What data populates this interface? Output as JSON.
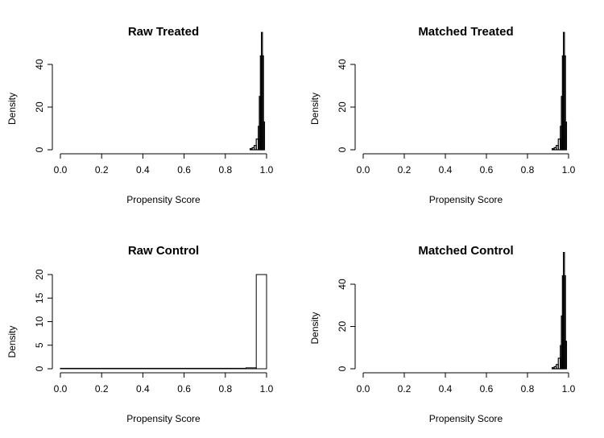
{
  "chart_data": [
    {
      "type": "histogram",
      "title": "Raw Treated",
      "xlabel": "Propensity Score",
      "ylabel": "Density",
      "xlim": [
        0,
        1
      ],
      "ylim": [
        0,
        50
      ],
      "xticks": [
        "0.0",
        "0.2",
        "0.4",
        "0.6",
        "0.8",
        "1.0"
      ],
      "yticks": [
        "0",
        "20",
        "40"
      ],
      "bins": [
        {
          "x0": 0.92,
          "x1": 0.93,
          "density": 0.5
        },
        {
          "x0": 0.93,
          "x1": 0.94,
          "density": 1
        },
        {
          "x0": 0.94,
          "x1": 0.95,
          "density": 2
        },
        {
          "x0": 0.95,
          "x1": 0.96,
          "density": 5
        },
        {
          "x0": 0.96,
          "x1": 0.965,
          "density": 11
        },
        {
          "x0": 0.965,
          "x1": 0.97,
          "density": 25
        },
        {
          "x0": 0.97,
          "x1": 0.975,
          "density": 44
        },
        {
          "x0": 0.975,
          "x1": 0.98,
          "density": 55
        },
        {
          "x0": 0.98,
          "x1": 0.985,
          "density": 44
        },
        {
          "x0": 0.985,
          "x1": 0.99,
          "density": 13
        }
      ]
    },
    {
      "type": "histogram",
      "title": "Matched Treated",
      "xlabel": "Propensity Score",
      "ylabel": "Density",
      "xlim": [
        0,
        1
      ],
      "ylim": [
        0,
        50
      ],
      "xticks": [
        "0.0",
        "0.2",
        "0.4",
        "0.6",
        "0.8",
        "1.0"
      ],
      "yticks": [
        "0",
        "20",
        "40"
      ],
      "bins": [
        {
          "x0": 0.92,
          "x1": 0.93,
          "density": 0.5
        },
        {
          "x0": 0.93,
          "x1": 0.94,
          "density": 1
        },
        {
          "x0": 0.94,
          "x1": 0.95,
          "density": 2
        },
        {
          "x0": 0.95,
          "x1": 0.96,
          "density": 5
        },
        {
          "x0": 0.96,
          "x1": 0.965,
          "density": 11
        },
        {
          "x0": 0.965,
          "x1": 0.97,
          "density": 25
        },
        {
          "x0": 0.97,
          "x1": 0.975,
          "density": 44
        },
        {
          "x0": 0.975,
          "x1": 0.98,
          "density": 55
        },
        {
          "x0": 0.98,
          "x1": 0.985,
          "density": 44
        },
        {
          "x0": 0.985,
          "x1": 0.99,
          "density": 13
        }
      ]
    },
    {
      "type": "histogram",
      "title": "Raw Control",
      "xlabel": "Propensity Score",
      "ylabel": "Density",
      "xlim": [
        0,
        1
      ],
      "ylim": [
        0,
        20
      ],
      "xticks": [
        "0.0",
        "0.2",
        "0.4",
        "0.6",
        "0.8",
        "1.0"
      ],
      "yticks": [
        "0",
        "5",
        "10",
        "15",
        "20"
      ],
      "bins": [
        {
          "x0": 0.0,
          "x1": 0.9,
          "density": 0.1
        },
        {
          "x0": 0.9,
          "x1": 0.95,
          "density": 0.2
        },
        {
          "x0": 0.95,
          "x1": 1.0,
          "density": 20
        }
      ]
    },
    {
      "type": "histogram",
      "title": "Matched Control",
      "xlabel": "Propensity Score",
      "ylabel": "Density",
      "xlim": [
        0,
        1
      ],
      "ylim": [
        0,
        50
      ],
      "xticks": [
        "0.0",
        "0.2",
        "0.4",
        "0.6",
        "0.8",
        "1.0"
      ],
      "yticks": [
        "0",
        "20",
        "40"
      ],
      "bins": [
        {
          "x0": 0.92,
          "x1": 0.93,
          "density": 0.5
        },
        {
          "x0": 0.93,
          "x1": 0.94,
          "density": 1
        },
        {
          "x0": 0.94,
          "x1": 0.95,
          "density": 2
        },
        {
          "x0": 0.95,
          "x1": 0.96,
          "density": 5
        },
        {
          "x0": 0.96,
          "x1": 0.965,
          "density": 11
        },
        {
          "x0": 0.965,
          "x1": 0.97,
          "density": 25
        },
        {
          "x0": 0.97,
          "x1": 0.975,
          "density": 44
        },
        {
          "x0": 0.975,
          "x1": 0.98,
          "density": 55
        },
        {
          "x0": 0.98,
          "x1": 0.985,
          "density": 44
        },
        {
          "x0": 0.985,
          "x1": 0.99,
          "density": 13
        }
      ]
    }
  ]
}
